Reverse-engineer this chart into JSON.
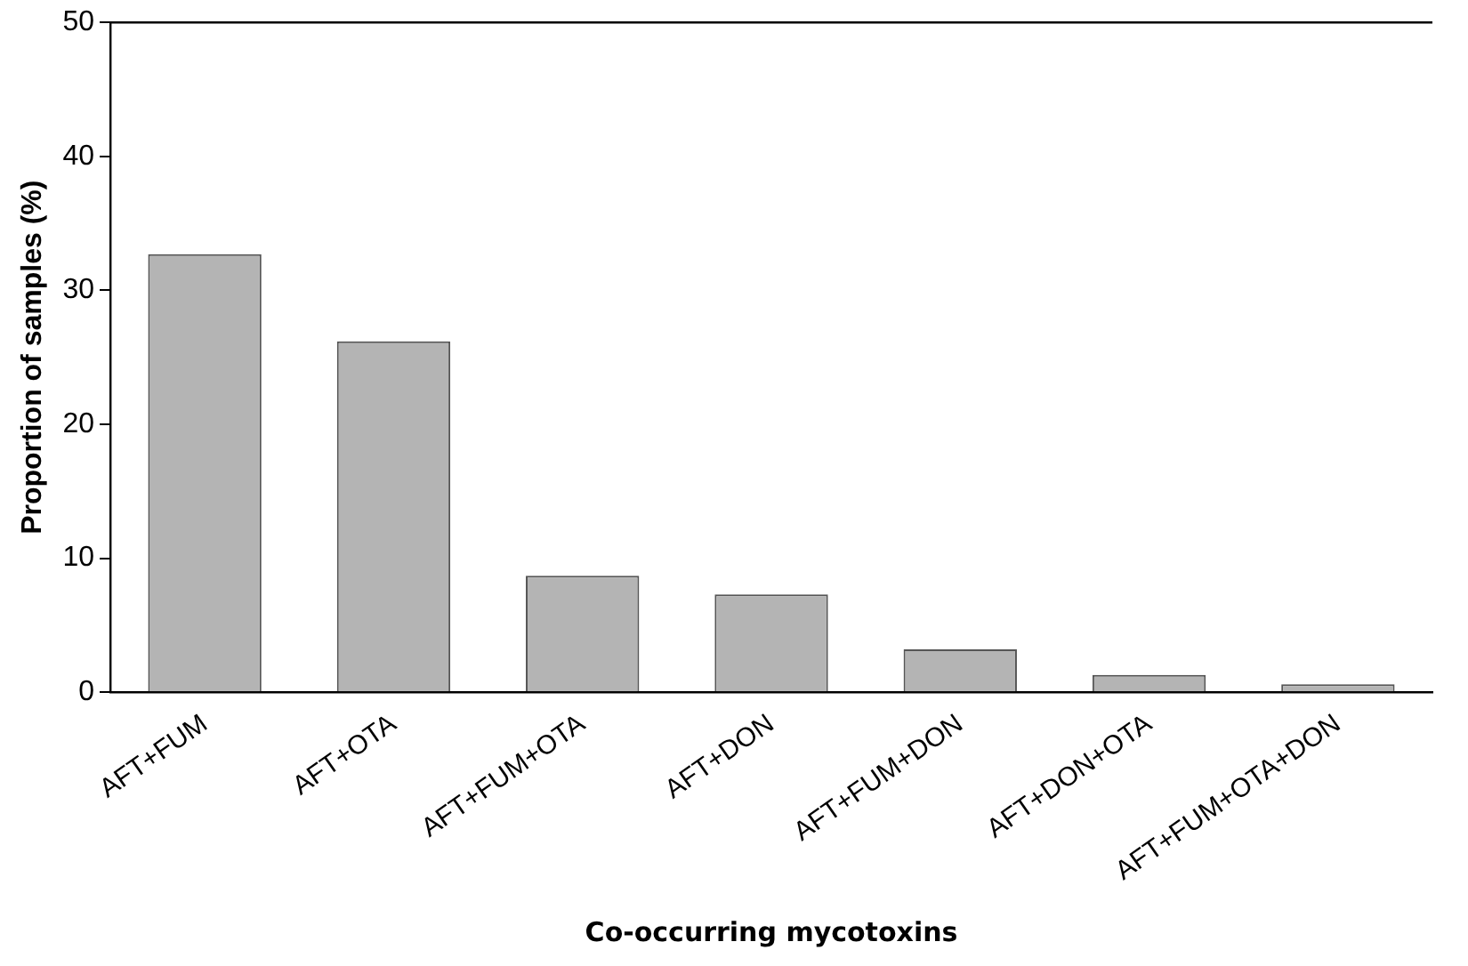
{
  "chart_data": {
    "type": "bar",
    "xlabel": "Co-occurring mycotoxins",
    "ylabel": "Proportion of samples (%)",
    "categories": [
      "AFT+FUM",
      "AFT+OTA",
      "AFT+FUM+OTA",
      "AFT+DON",
      "AFT+FUM+DON",
      "AFT+DON+OTA",
      "AFT+FUM+OTA+DON"
    ],
    "values": [
      32.7,
      26.2,
      8.7,
      7.3,
      3.2,
      1.3,
      0.6
    ],
    "color": "#b4b4b4",
    "ylim": [
      0,
      50
    ],
    "yticks": [
      0,
      10,
      20,
      30,
      40,
      50
    ],
    "grid": false,
    "legend": false
  }
}
